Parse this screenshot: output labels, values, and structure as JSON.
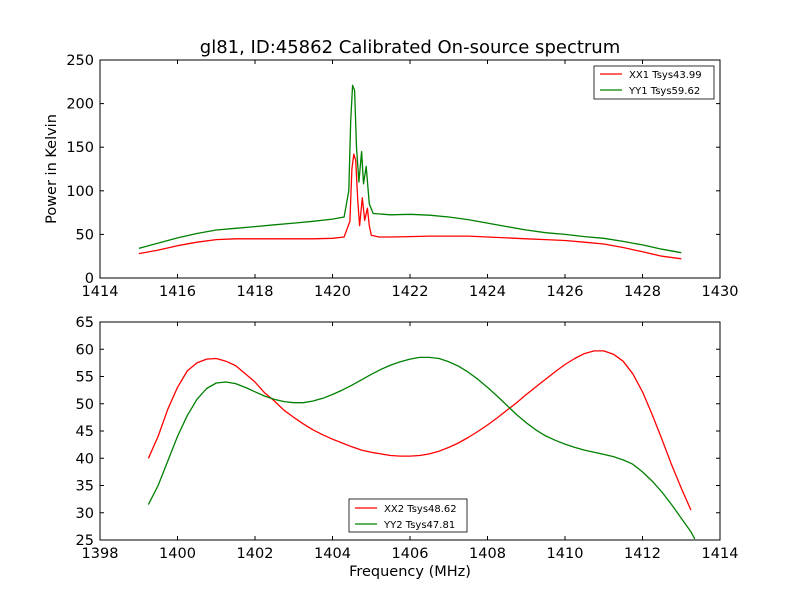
{
  "figure": {
    "title": "gl81, ID:45862 Calibrated On-source spectrum"
  },
  "chart_data": [
    {
      "type": "line",
      "title": "gl81, ID:45862 Calibrated On-source spectrum",
      "xlabel": "",
      "ylabel": "Power in Kelvin",
      "xlim": [
        1414,
        1430
      ],
      "ylim": [
        0,
        250
      ],
      "x_ticks": [
        1414,
        1416,
        1418,
        1420,
        1422,
        1424,
        1426,
        1428,
        1430
      ],
      "y_ticks": [
        0,
        50,
        100,
        150,
        200,
        250
      ],
      "grid": false,
      "legend_position": "top-right",
      "series": [
        {
          "name": "XX1 Tsys43.99",
          "color": "#ff0000",
          "points": [
            [
              1415.0,
              28
            ],
            [
              1415.5,
              32
            ],
            [
              1416.0,
              37
            ],
            [
              1416.5,
              41
            ],
            [
              1417.0,
              44
            ],
            [
              1417.5,
              45
            ],
            [
              1418.0,
              45
            ],
            [
              1418.5,
              45
            ],
            [
              1419.0,
              45
            ],
            [
              1419.5,
              45
            ],
            [
              1420.0,
              45.5
            ],
            [
              1420.3,
              47
            ],
            [
              1420.45,
              65
            ],
            [
              1420.5,
              125
            ],
            [
              1420.55,
              142
            ],
            [
              1420.6,
              135
            ],
            [
              1420.65,
              90
            ],
            [
              1420.7,
              60
            ],
            [
              1420.77,
              92
            ],
            [
              1420.83,
              66
            ],
            [
              1420.9,
              80
            ],
            [
              1420.95,
              60
            ],
            [
              1421.0,
              49
            ],
            [
              1421.2,
              47
            ],
            [
              1421.5,
              47
            ],
            [
              1422.0,
              47.5
            ],
            [
              1422.5,
              48
            ],
            [
              1423.0,
              48
            ],
            [
              1423.5,
              48
            ],
            [
              1424.0,
              47
            ],
            [
              1424.5,
              46
            ],
            [
              1425.0,
              45
            ],
            [
              1425.5,
              44
            ],
            [
              1426.0,
              43
            ],
            [
              1426.5,
              41
            ],
            [
              1427.0,
              39
            ],
            [
              1427.5,
              35
            ],
            [
              1428.0,
              30
            ],
            [
              1428.5,
              25
            ],
            [
              1429.0,
              22
            ]
          ]
        },
        {
          "name": "YY1 Tsys59.62",
          "color": "#008000",
          "points": [
            [
              1415.0,
              34
            ],
            [
              1415.5,
              40
            ],
            [
              1416.0,
              46
            ],
            [
              1416.5,
              51
            ],
            [
              1417.0,
              55
            ],
            [
              1417.5,
              57
            ],
            [
              1418.0,
              59
            ],
            [
              1418.5,
              61
            ],
            [
              1419.0,
              63
            ],
            [
              1419.5,
              65
            ],
            [
              1420.0,
              67.5
            ],
            [
              1420.3,
              70
            ],
            [
              1420.42,
              100
            ],
            [
              1420.47,
              180
            ],
            [
              1420.52,
              221
            ],
            [
              1420.57,
              215
            ],
            [
              1420.62,
              150
            ],
            [
              1420.68,
              110
            ],
            [
              1420.75,
              145
            ],
            [
              1420.8,
              108
            ],
            [
              1420.87,
              128
            ],
            [
              1420.95,
              85
            ],
            [
              1421.05,
              74
            ],
            [
              1421.5,
              72.5
            ],
            [
              1422.0,
              73
            ],
            [
              1422.5,
              72
            ],
            [
              1423.0,
              70
            ],
            [
              1423.5,
              67
            ],
            [
              1424.0,
              63
            ],
            [
              1424.5,
              59
            ],
            [
              1425.0,
              55
            ],
            [
              1425.5,
              52
            ],
            [
              1426.0,
              50
            ],
            [
              1426.5,
              47.5
            ],
            [
              1427.0,
              45.5
            ],
            [
              1427.5,
              42
            ],
            [
              1428.0,
              38
            ],
            [
              1428.5,
              33
            ],
            [
              1429.0,
              29
            ]
          ]
        }
      ]
    },
    {
      "type": "line",
      "title": "",
      "xlabel": "Frequency (MHz)",
      "ylabel": "",
      "xlim": [
        1398,
        1414
      ],
      "ylim": [
        25,
        65
      ],
      "x_ticks": [
        1398,
        1400,
        1402,
        1404,
        1406,
        1408,
        1410,
        1412,
        1414
      ],
      "y_ticks": [
        25,
        30,
        35,
        40,
        45,
        50,
        55,
        60,
        65
      ],
      "grid": false,
      "legend_position": "bottom-center",
      "series": [
        {
          "name": "XX2 Tsys48.62",
          "color": "#ff0000",
          "points": [
            [
              1399.25,
              40
            ],
            [
              1399.5,
              44
            ],
            [
              1399.75,
              49
            ],
            [
              1400.0,
              53
            ],
            [
              1400.25,
              56
            ],
            [
              1400.5,
              57.5
            ],
            [
              1400.75,
              58.2
            ],
            [
              1401.0,
              58.3
            ],
            [
              1401.25,
              57.8
            ],
            [
              1401.5,
              57
            ],
            [
              1401.75,
              55.5
            ],
            [
              1402.0,
              54
            ],
            [
              1402.25,
              52
            ],
            [
              1402.5,
              50.5
            ],
            [
              1402.75,
              48.8
            ],
            [
              1403.0,
              47.5
            ],
            [
              1403.25,
              46.3
            ],
            [
              1403.5,
              45.2
            ],
            [
              1403.75,
              44.3
            ],
            [
              1404.0,
              43.5
            ],
            [
              1404.25,
              42.8
            ],
            [
              1404.5,
              42.1
            ],
            [
              1404.75,
              41.5
            ],
            [
              1405.0,
              41.1
            ],
            [
              1405.25,
              40.8
            ],
            [
              1405.5,
              40.5
            ],
            [
              1405.75,
              40.4
            ],
            [
              1406.0,
              40.4
            ],
            [
              1406.25,
              40.5
            ],
            [
              1406.5,
              40.8
            ],
            [
              1406.75,
              41.3
            ],
            [
              1407.0,
              42
            ],
            [
              1407.25,
              42.8
            ],
            [
              1407.5,
              43.8
            ],
            [
              1407.75,
              44.9
            ],
            [
              1408.0,
              46.1
            ],
            [
              1408.25,
              47.4
            ],
            [
              1408.5,
              48.8
            ],
            [
              1408.75,
              50.2
            ],
            [
              1409.0,
              51.7
            ],
            [
              1409.25,
              53.1
            ],
            [
              1409.5,
              54.5
            ],
            [
              1409.75,
              55.9
            ],
            [
              1410.0,
              57.2
            ],
            [
              1410.25,
              58.3
            ],
            [
              1410.5,
              59.2
            ],
            [
              1410.75,
              59.7
            ],
            [
              1411.0,
              59.7
            ],
            [
              1411.25,
              59.1
            ],
            [
              1411.5,
              57.8
            ],
            [
              1411.75,
              55.5
            ],
            [
              1412.0,
              52.2
            ],
            [
              1412.25,
              48
            ],
            [
              1412.5,
              43.5
            ],
            [
              1412.75,
              38.8
            ],
            [
              1413.0,
              34.5
            ],
            [
              1413.25,
              30.5
            ]
          ]
        },
        {
          "name": "YY2 Tsys47.81",
          "color": "#008000",
          "points": [
            [
              1399.25,
              31.5
            ],
            [
              1399.5,
              35
            ],
            [
              1399.75,
              39.5
            ],
            [
              1400.0,
              44
            ],
            [
              1400.25,
              47.8
            ],
            [
              1400.5,
              50.8
            ],
            [
              1400.75,
              52.8
            ],
            [
              1401.0,
              53.8
            ],
            [
              1401.25,
              54
            ],
            [
              1401.5,
              53.7
            ],
            [
              1401.75,
              53
            ],
            [
              1402.0,
              52.2
            ],
            [
              1402.25,
              51.4
            ],
            [
              1402.5,
              50.8
            ],
            [
              1402.75,
              50.4
            ],
            [
              1403.0,
              50.2
            ],
            [
              1403.25,
              50.2
            ],
            [
              1403.5,
              50.5
            ],
            [
              1403.75,
              51
            ],
            [
              1404.0,
              51.7
            ],
            [
              1404.25,
              52.5
            ],
            [
              1404.5,
              53.4
            ],
            [
              1404.75,
              54.4
            ],
            [
              1405.0,
              55.4
            ],
            [
              1405.25,
              56.3
            ],
            [
              1405.5,
              57.1
            ],
            [
              1405.75,
              57.7
            ],
            [
              1406.0,
              58.2
            ],
            [
              1406.25,
              58.5
            ],
            [
              1406.5,
              58.5
            ],
            [
              1406.75,
              58.3
            ],
            [
              1407.0,
              57.7
            ],
            [
              1407.25,
              56.9
            ],
            [
              1407.5,
              55.8
            ],
            [
              1407.75,
              54.5
            ],
            [
              1408.0,
              53
            ],
            [
              1408.25,
              51.4
            ],
            [
              1408.5,
              49.7
            ],
            [
              1408.75,
              48
            ],
            [
              1409.0,
              46.5
            ],
            [
              1409.25,
              45.2
            ],
            [
              1409.5,
              44.1
            ],
            [
              1409.75,
              43.3
            ],
            [
              1410.0,
              42.6
            ],
            [
              1410.25,
              42
            ],
            [
              1410.5,
              41.5
            ],
            [
              1410.75,
              41.1
            ],
            [
              1411.0,
              40.7
            ],
            [
              1411.25,
              40.3
            ],
            [
              1411.5,
              39.7
            ],
            [
              1411.75,
              38.9
            ],
            [
              1412.0,
              37.5
            ],
            [
              1412.25,
              35.8
            ],
            [
              1412.5,
              33.8
            ],
            [
              1412.75,
              31.5
            ],
            [
              1413.0,
              29
            ],
            [
              1413.25,
              26.5
            ],
            [
              1413.35,
              25.2
            ]
          ]
        }
      ]
    }
  ]
}
